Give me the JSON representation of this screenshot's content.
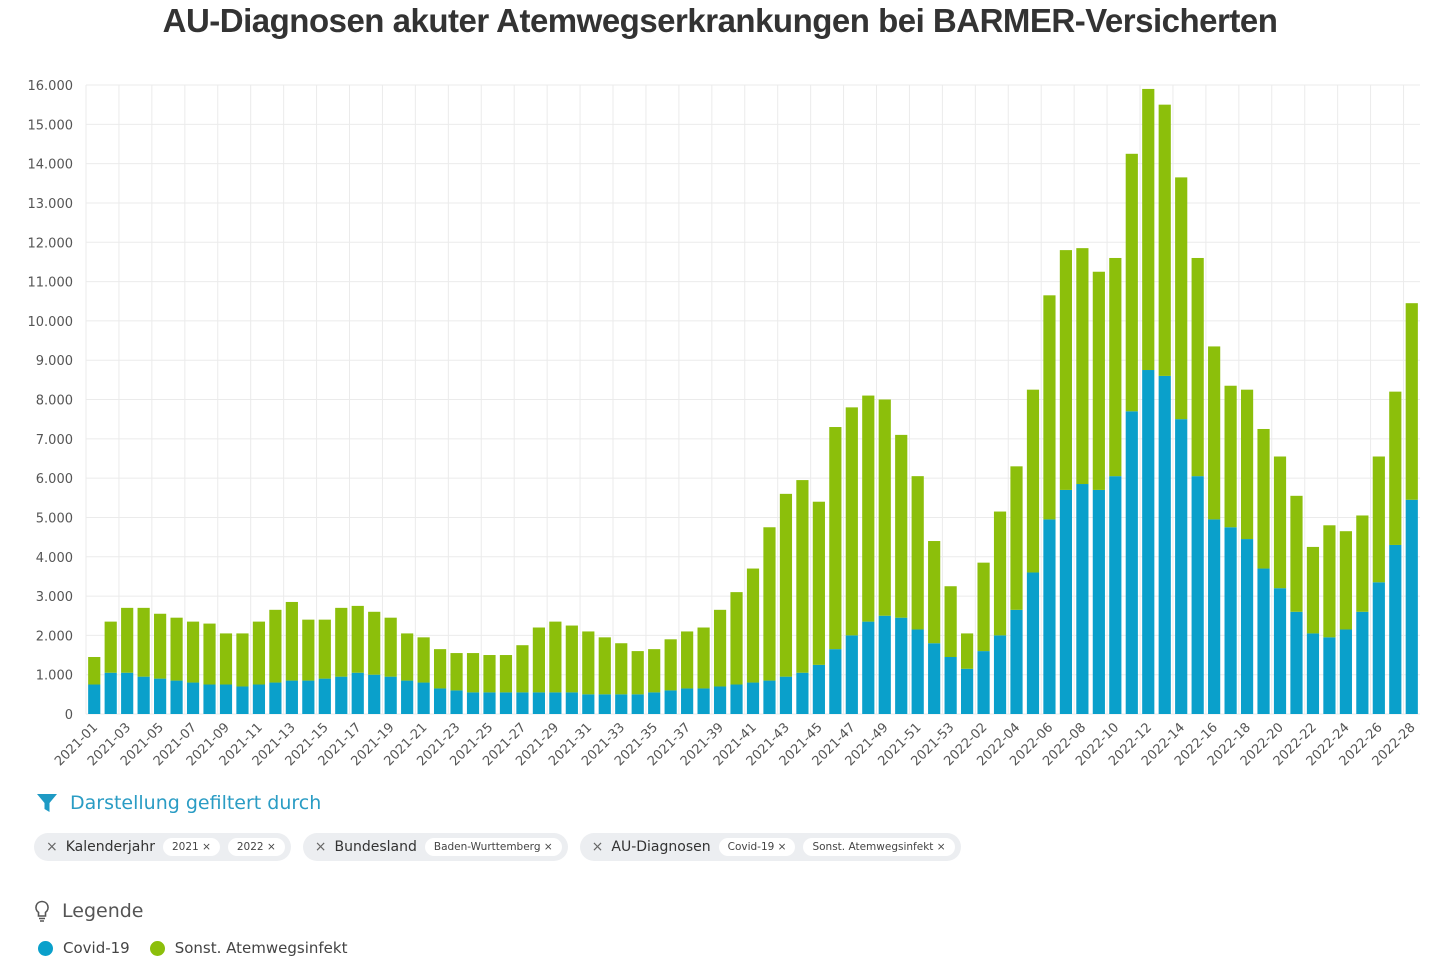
{
  "chart_data": {
    "type": "bar",
    "stacked": true,
    "title": "AU-Diagnosen akuter Atemwegserkrankungen bei BARMER-Versicherten",
    "xlabel": "",
    "ylabel": "",
    "ylim": [
      0,
      16000
    ],
    "yticks": [
      "0",
      "1.000",
      "2.000",
      "3.000",
      "4.000",
      "5.000",
      "6.000",
      "7.000",
      "8.000",
      "9.000",
      "10.000",
      "11.000",
      "12.000",
      "13.000",
      "14.000",
      "15.000",
      "16.000"
    ],
    "grid": true,
    "categories": [
      "2021-01",
      "2021-02",
      "2021-03",
      "2021-04",
      "2021-05",
      "2021-06",
      "2021-07",
      "2021-08",
      "2021-09",
      "2021-10",
      "2021-11",
      "2021-12",
      "2021-13",
      "2021-14",
      "2021-15",
      "2021-16",
      "2021-17",
      "2021-18",
      "2021-19",
      "2021-20",
      "2021-21",
      "2021-22",
      "2021-23",
      "2021-24",
      "2021-25",
      "2021-26",
      "2021-27",
      "2021-28",
      "2021-29",
      "2021-30",
      "2021-31",
      "2021-32",
      "2021-33",
      "2021-34",
      "2021-35",
      "2021-36",
      "2021-37",
      "2021-38",
      "2021-39",
      "2021-40",
      "2021-41",
      "2021-42",
      "2021-43",
      "2021-44",
      "2021-45",
      "2021-46",
      "2021-47",
      "2021-48",
      "2021-49",
      "2021-50",
      "2021-51",
      "2021-52",
      "2021-53",
      "2022-01",
      "2022-02",
      "2022-03",
      "2022-04",
      "2022-05",
      "2022-06",
      "2022-07",
      "2022-08",
      "2022-09",
      "2022-10",
      "2022-11",
      "2022-12",
      "2022-13",
      "2022-14",
      "2022-15",
      "2022-16",
      "2022-17",
      "2022-18",
      "2022-19",
      "2022-20",
      "2022-21",
      "2022-22",
      "2022-23",
      "2022-24",
      "2022-25",
      "2022-26",
      "2022-27",
      "2022-28"
    ],
    "series": [
      {
        "name": "Covid-19",
        "color": "#0aa0cb",
        "values": [
          750,
          1050,
          1050,
          950,
          900,
          850,
          800,
          750,
          750,
          700,
          750,
          800,
          850,
          850,
          900,
          950,
          1050,
          1000,
          950,
          850,
          800,
          650,
          600,
          550,
          550,
          550,
          550,
          550,
          550,
          550,
          500,
          500,
          500,
          500,
          550,
          600,
          650,
          650,
          700,
          750,
          800,
          850,
          950,
          1050,
          1250,
          1650,
          2000,
          2350,
          2500,
          2450,
          2150,
          1800,
          1450,
          1150,
          1600,
          2000,
          2650,
          3600,
          4950,
          5700,
          5850,
          5700,
          6050,
          7700,
          8750,
          8600,
          7500,
          6050,
          4950,
          4750,
          4450,
          3700,
          3200,
          2600,
          2050,
          1950,
          2150,
          2600,
          3350,
          4300,
          5450
        ]
      },
      {
        "name": "Sonst. Atemwegsinfekt",
        "color": "#8cbf0b",
        "values": [
          700,
          1300,
          1650,
          1750,
          1650,
          1600,
          1550,
          1550,
          1300,
          1350,
          1600,
          1850,
          2000,
          1550,
          1500,
          1750,
          1700,
          1600,
          1500,
          1200,
          1150,
          1000,
          950,
          1000,
          950,
          950,
          1200,
          1650,
          1800,
          1700,
          1600,
          1450,
          1300,
          1100,
          1100,
          1300,
          1450,
          1550,
          1950,
          2350,
          2900,
          3900,
          4650,
          4900,
          4150,
          5650,
          5800,
          5750,
          5500,
          4650,
          3900,
          2600,
          1800,
          900,
          2250,
          3150,
          3650,
          4650,
          5700,
          6100,
          6000,
          5550,
          5550,
          6550,
          7150,
          6900,
          6150,
          5550,
          4400,
          3600,
          3800,
          3550,
          3350,
          2950,
          2200,
          2850,
          2500,
          2450,
          3200,
          3900,
          5000
        ]
      }
    ]
  },
  "filter": {
    "heading": "Darstellung gefiltert durch",
    "icon": "funnel-icon",
    "groups": [
      {
        "label": "Kalenderjahr",
        "values": [
          "2021",
          "2022"
        ]
      },
      {
        "label": "Bundesland",
        "values": [
          "Baden-Wurttemberg"
        ]
      },
      {
        "label": "AU-Diagnosen",
        "values": [
          "Covid-19",
          "Sonst. Atemwegsinfekt"
        ]
      }
    ],
    "remove_glyph": "×"
  },
  "legend": {
    "heading": "Legende",
    "icon": "lightbulb-icon",
    "items": [
      {
        "label": "Covid-19",
        "color": "#0aa0cb"
      },
      {
        "label": "Sonst. Atemwegsinfekt",
        "color": "#8cbf0b"
      }
    ]
  }
}
